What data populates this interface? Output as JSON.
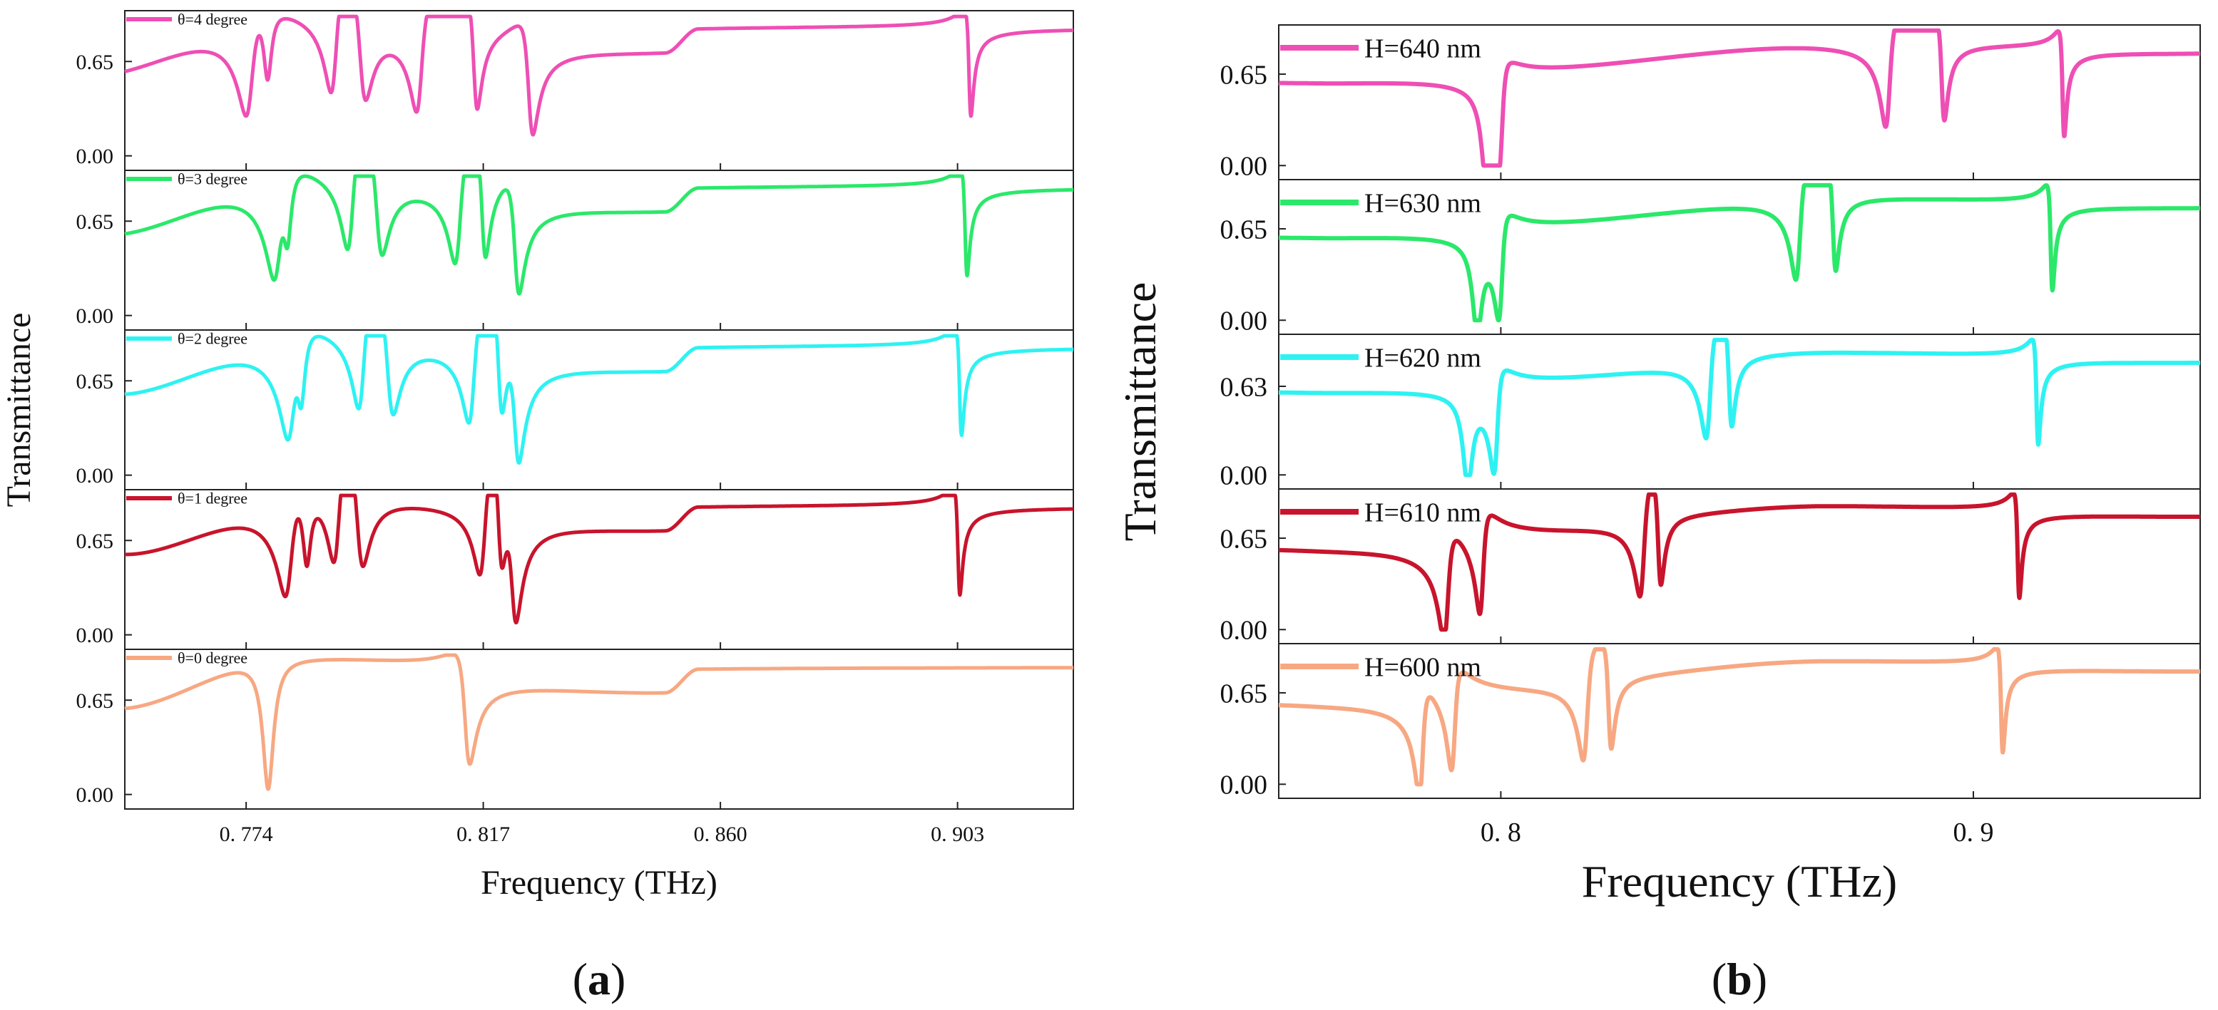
{
  "chart_data": [
    {
      "type": "line",
      "panel_label": "(a)",
      "panel_letter": "a",
      "xlabel": "Frequency (THz)",
      "ylabel": "Transmittance",
      "xlim": [
        0.752,
        0.924
      ],
      "xticks": [
        0.774,
        0.817,
        0.86,
        0.903
      ],
      "xtick_labels": [
        "0. 774",
        "0. 817",
        "0. 860",
        "0. 903"
      ],
      "ylim": [
        -0.1,
        1.0
      ],
      "yticks": [
        0.0,
        0.65
      ],
      "ytick_labels": [
        "0.00",
        "0.65"
      ],
      "subplots": [
        {
          "legend": "θ=4 degree",
          "color": "#ee4fb4",
          "baseline": 0.58,
          "end": 0.85,
          "edges": [
            [
              0.7755,
              0.92
            ],
            [
              0.85,
              0.72
            ],
            [
              0.856,
              0.88
            ]
          ],
          "features": [
            {
              "type": "fano",
              "f0": 0.7747,
              "w": 0.0016,
              "d": 0.95
            },
            {
              "type": "dip",
              "f0": 0.7779,
              "w": 0.0009,
              "d": 0.55
            },
            {
              "type": "fano",
              "f0": 0.79,
              "w": 0.0013,
              "d": 0.96
            },
            {
              "type": "fano",
              "f0": 0.795,
              "w": 0.0014,
              "d": -0.95
            },
            {
              "type": "fano",
              "f0": 0.8055,
              "w": 0.0013,
              "d": 0.96
            },
            {
              "type": "fano",
              "f0": 0.8155,
              "w": 0.0009,
              "d": -0.97
            },
            {
              "type": "fano",
              "f0": 0.8255,
              "w": 0.0011,
              "d": -0.97
            },
            {
              "type": "fano",
              "f0": 0.9052,
              "w": 0.0005,
              "d": -0.95
            }
          ]
        },
        {
          "legend": "θ=3 degree",
          "color": "#2be86a",
          "baseline": 0.58,
          "end": 0.85,
          "edges": [
            [
              0.7785,
              0.92
            ],
            [
              0.85,
              0.72
            ],
            [
              0.856,
              0.88
            ]
          ],
          "features": [
            {
              "type": "fano",
              "f0": 0.7797,
              "w": 0.0016,
              "d": 0.95
            },
            {
              "type": "dip",
              "f0": 0.7815,
              "w": 0.0009,
              "d": 0.55
            },
            {
              "type": "fano",
              "f0": 0.793,
              "w": 0.0013,
              "d": 0.96
            },
            {
              "type": "fano",
              "f0": 0.798,
              "w": 0.0014,
              "d": -0.95
            },
            {
              "type": "fano",
              "f0": 0.8125,
              "w": 0.0013,
              "d": 0.96
            },
            {
              "type": "fano",
              "f0": 0.817,
              "w": 0.0009,
              "d": -0.97
            },
            {
              "type": "fano",
              "f0": 0.823,
              "w": 0.0011,
              "d": -0.97
            },
            {
              "type": "fano",
              "f0": 0.9045,
              "w": 0.0005,
              "d": -0.95
            }
          ]
        },
        {
          "legend": "θ=2 degree",
          "color": "#2ef2f2",
          "baseline": 0.58,
          "end": 0.85,
          "edges": [
            [
              0.7802,
              0.92
            ],
            [
              0.85,
              0.72
            ],
            [
              0.856,
              0.88
            ]
          ],
          "features": [
            {
              "type": "fano",
              "f0": 0.7822,
              "w": 0.0016,
              "d": 0.95
            },
            {
              "type": "dip",
              "f0": 0.784,
              "w": 0.0009,
              "d": 0.55
            },
            {
              "type": "fano",
              "f0": 0.795,
              "w": 0.0013,
              "d": 0.96
            },
            {
              "type": "fano",
              "f0": 0.8,
              "w": 0.0014,
              "d": -0.95
            },
            {
              "type": "fano",
              "f0": 0.815,
              "w": 0.0013,
              "d": 0.96
            },
            {
              "type": "fano",
              "f0": 0.82,
              "w": 0.0009,
              "d": -0.97
            },
            {
              "type": "fano",
              "f0": 0.823,
              "w": 0.0011,
              "d": -0.97
            },
            {
              "type": "fano",
              "f0": 0.9035,
              "w": 0.0005,
              "d": -0.95
            }
          ]
        },
        {
          "legend": "θ=1 degree",
          "color": "#c8142c",
          "baseline": 0.58,
          "end": 0.85,
          "edges": [
            [
              0.7815,
              0.92
            ],
            [
              0.85,
              0.72
            ],
            [
              0.856,
              0.88
            ]
          ],
          "features": [
            {
              "type": "fano",
              "f0": 0.7818,
              "w": 0.0016,
              "d": 0.95
            },
            {
              "type": "dip",
              "f0": 0.785,
              "w": 0.0009,
              "d": 0.55
            },
            {
              "type": "fano",
              "f0": 0.7905,
              "w": 0.0013,
              "d": 0.96
            },
            {
              "type": "fano",
              "f0": 0.7945,
              "w": 0.0014,
              "d": -0.95
            },
            {
              "type": "fano",
              "f0": 0.817,
              "w": 0.0013,
              "d": 0.96
            },
            {
              "type": "fano",
              "f0": 0.82,
              "w": 0.0009,
              "d": -0.97
            },
            {
              "type": "fano",
              "f0": 0.8225,
              "w": 0.0011,
              "d": -0.97
            },
            {
              "type": "fano",
              "f0": 0.9032,
              "w": 0.0005,
              "d": -0.95
            }
          ]
        },
        {
          "legend": "θ=0 degree",
          "color": "#f7a882",
          "baseline": 0.58,
          "end": 0.85,
          "edges": [
            [
              0.7805,
              0.92
            ],
            [
              0.85,
              0.72
            ],
            [
              0.856,
              0.88
            ]
          ],
          "features": [
            {
              "type": "dip",
              "f0": 0.778,
              "w": 0.0012,
              "d": 0.98
            },
            {
              "type": "fano",
              "f0": 0.814,
              "w": 0.0012,
              "d": -0.96
            }
          ]
        }
      ]
    },
    {
      "type": "line",
      "panel_label": "(b)",
      "panel_letter": "b",
      "xlabel": "Frequency (THz)",
      "ylabel": "Transmittance",
      "xlim": [
        0.753,
        0.948
      ],
      "xticks": [
        0.8,
        0.9
      ],
      "xtick_labels": [
        "0. 8",
        "0. 9"
      ],
      "ylim": [
        -0.1,
        1.0
      ],
      "subplots": [
        {
          "legend": "H=640 nm",
          "color": "#ee4fb4",
          "ytick_labels": [
            "0.00",
            "0.65"
          ],
          "yticks": [
            0.0,
            0.65
          ],
          "baseline": 0.6,
          "end": 0.82,
          "edges": [
            [
              0.79,
              0.62
            ],
            [
              0.87,
              0.85
            ],
            [
              0.948,
              0.8
            ]
          ],
          "features": [
            {
              "type": "dip",
              "f0": 0.797,
              "w": 0.0012,
              "d": 0.98
            },
            {
              "type": "fano",
              "f0": 0.8,
              "w": 0.001,
              "d": 0.92
            },
            {
              "type": "fano",
              "f0": 0.882,
              "w": 0.0012,
              "d": 0.97
            },
            {
              "type": "fano",
              "f0": 0.8935,
              "w": 0.0008,
              "d": -0.92
            },
            {
              "type": "fano",
              "f0": 0.919,
              "w": 0.0005,
              "d": -0.96
            }
          ]
        },
        {
          "legend": "H=630 nm",
          "color": "#2be86a",
          "ytick_labels": [
            "0.00",
            "0.65"
          ],
          "yticks": [
            0.0,
            0.65
          ],
          "baseline": 0.6,
          "end": 0.82,
          "edges": [
            [
              0.79,
              0.62
            ],
            [
              0.87,
              0.85
            ],
            [
              0.948,
              0.8
            ]
          ],
          "features": [
            {
              "type": "dip",
              "f0": 0.795,
              "w": 0.0012,
              "d": 0.98
            },
            {
              "type": "fano",
              "f0": 0.8,
              "w": 0.001,
              "d": 0.92
            },
            {
              "type": "fano",
              "f0": 0.863,
              "w": 0.0012,
              "d": 0.97
            },
            {
              "type": "fano",
              "f0": 0.8705,
              "w": 0.0008,
              "d": -0.92
            },
            {
              "type": "fano",
              "f0": 0.9165,
              "w": 0.0005,
              "d": -0.96
            }
          ]
        },
        {
          "legend": "H=620 nm",
          "color": "#2ef2f2",
          "ytick_labels": [
            "0.00",
            "0.63"
          ],
          "yticks": [
            0.0,
            0.63
          ],
          "baseline": 0.6,
          "end": 0.82,
          "edges": [
            [
              0.79,
              0.62
            ],
            [
              0.87,
              0.85
            ],
            [
              0.948,
              0.8
            ]
          ],
          "features": [
            {
              "type": "dip",
              "f0": 0.793,
              "w": 0.0012,
              "d": 0.98
            },
            {
              "type": "fano",
              "f0": 0.799,
              "w": 0.001,
              "d": 0.92
            },
            {
              "type": "fano",
              "f0": 0.844,
              "w": 0.0012,
              "d": 0.97
            },
            {
              "type": "fano",
              "f0": 0.8485,
              "w": 0.0008,
              "d": -0.92
            },
            {
              "type": "fano",
              "f0": 0.9135,
              "w": 0.0005,
              "d": -0.96
            }
          ]
        },
        {
          "legend": "H=610 nm",
          "color": "#c8142c",
          "ytick_labels": [
            "0.00",
            "0.65"
          ],
          "yticks": [
            0.0,
            0.65
          ],
          "baseline": 0.6,
          "end": 0.82,
          "edges": [
            [
              0.79,
              0.62
            ],
            [
              0.87,
              0.85
            ],
            [
              0.948,
              0.8
            ]
          ],
          "features": [
            {
              "type": "fano",
              "f0": 0.7885,
              "w": 0.0012,
              "d": 0.97
            },
            {
              "type": "fano",
              "f0": 0.796,
              "w": 0.001,
              "d": 0.92
            },
            {
              "type": "fano",
              "f0": 0.83,
              "w": 0.0012,
              "d": 0.97
            },
            {
              "type": "fano",
              "f0": 0.8335,
              "w": 0.0008,
              "d": -0.92
            },
            {
              "type": "fano",
              "f0": 0.9095,
              "w": 0.0005,
              "d": -0.96
            }
          ]
        },
        {
          "legend": "H=600 nm",
          "color": "#f7a882",
          "ytick_labels": [
            "0.00",
            "0.65"
          ],
          "yticks": [
            0.0,
            0.65
          ],
          "baseline": 0.6,
          "end": 0.82,
          "edges": [
            [
              0.79,
              0.62
            ],
            [
              0.87,
              0.85
            ],
            [
              0.948,
              0.8
            ]
          ],
          "features": [
            {
              "type": "fano",
              "f0": 0.7832,
              "w": 0.001,
              "d": 0.97
            },
            {
              "type": "fano",
              "f0": 0.79,
              "w": 0.001,
              "d": 0.92
            },
            {
              "type": "fano",
              "f0": 0.818,
              "w": 0.0012,
              "d": 0.97
            },
            {
              "type": "fano",
              "f0": 0.823,
              "w": 0.0008,
              "d": -0.92
            },
            {
              "type": "fano",
              "f0": 0.906,
              "w": 0.0005,
              "d": -0.96
            }
          ]
        }
      ]
    }
  ]
}
